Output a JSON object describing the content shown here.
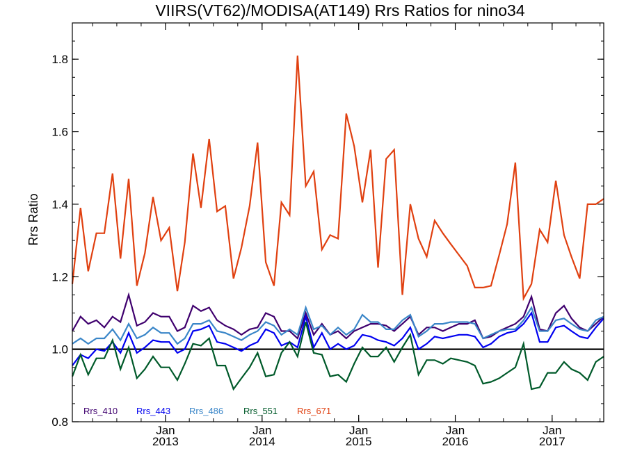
{
  "chart_data": {
    "type": "line",
    "title": "VIIRS(VT62)/MODISA(AT149)  Rrs Ratios for nino34",
    "xlabel": "",
    "ylabel": "Rrs Ratio",
    "xlim": [
      "2012-01-15",
      "2017-07-15"
    ],
    "ylim": [
      0.8,
      1.9
    ],
    "reference_line": 1.0,
    "legend_position": "bottom-left",
    "grid": false,
    "y_ticks": [
      "0.8",
      "1.0",
      "1.2",
      "1.4",
      "1.6",
      "1.8"
    ],
    "x_ticks": [
      {
        "date": "2013-01-01",
        "month": "Jan",
        "year": "2013"
      },
      {
        "date": "2014-01-01",
        "month": "Jan",
        "year": "2014"
      },
      {
        "date": "2015-01-01",
        "month": "Jan",
        "year": "2015"
      },
      {
        "date": "2016-01-01",
        "month": "Jan",
        "year": "2016"
      },
      {
        "date": "2017-01-01",
        "month": "Jan",
        "year": "2017"
      }
    ],
    "x": [
      "2012-01-15",
      "2012-02-15",
      "2012-03-15",
      "2012-04-15",
      "2012-05-15",
      "2012-06-15",
      "2012-07-15",
      "2012-08-15",
      "2012-09-15",
      "2012-10-15",
      "2012-11-15",
      "2012-12-15",
      "2013-01-15",
      "2013-02-15",
      "2013-03-15",
      "2013-04-15",
      "2013-05-15",
      "2013-06-15",
      "2013-07-15",
      "2013-08-15",
      "2013-09-15",
      "2013-10-15",
      "2013-11-15",
      "2013-12-15",
      "2014-01-15",
      "2014-02-15",
      "2014-03-15",
      "2014-04-15",
      "2014-05-15",
      "2014-06-15",
      "2014-07-15",
      "2014-08-15",
      "2014-09-15",
      "2014-10-15",
      "2014-11-15",
      "2014-12-15",
      "2015-01-15",
      "2015-02-15",
      "2015-03-15",
      "2015-04-15",
      "2015-05-15",
      "2015-06-15",
      "2015-07-15",
      "2015-08-15",
      "2015-09-15",
      "2015-10-15",
      "2015-11-15",
      "2015-12-15",
      "2016-01-15",
      "2016-02-15",
      "2016-03-15",
      "2016-04-15",
      "2016-05-15",
      "2016-06-15",
      "2016-07-15",
      "2016-08-15",
      "2016-09-15",
      "2016-10-15",
      "2016-11-15",
      "2016-12-15",
      "2017-01-15",
      "2017-02-15",
      "2017-03-15",
      "2017-04-15",
      "2017-05-15",
      "2017-06-15",
      "2017-07-15"
    ],
    "series": [
      {
        "name": "Rrs_410",
        "color": "#3f006e",
        "values": [
          1.05,
          1.09,
          1.07,
          1.08,
          1.06,
          1.09,
          1.075,
          1.15,
          1.065,
          1.075,
          1.1,
          1.09,
          1.09,
          1.05,
          1.06,
          1.12,
          1.105,
          1.115,
          1.08,
          1.065,
          1.055,
          1.04,
          1.055,
          1.06,
          1.1,
          1.09,
          1.05,
          1.05,
          1.03,
          1.1,
          1.04,
          1.07,
          1.04,
          1.05,
          1.03,
          1.05,
          1.06,
          1.07,
          1.07,
          1.065,
          1.05,
          1.07,
          1.09,
          1.04,
          1.06,
          1.06,
          1.05,
          1.06,
          1.07,
          1.07,
          1.08,
          1.03,
          1.035,
          1.05,
          1.06,
          1.07,
          1.09,
          1.145,
          1.055,
          1.05,
          1.1,
          1.12,
          1.085,
          1.06,
          1.05,
          1.07,
          1.09
        ]
      },
      {
        "name": "Rrs_443",
        "color": "#0000f0",
        "values": [
          0.955,
          0.985,
          0.975,
          1.0,
          0.995,
          1.02,
          0.99,
          1.045,
          0.99,
          1.005,
          1.025,
          1.02,
          1.02,
          0.99,
          1.0,
          1.05,
          1.055,
          1.065,
          1.02,
          1.015,
          1.005,
          0.995,
          1.01,
          1.02,
          1.055,
          1.045,
          1.01,
          1.02,
          1.005,
          1.09,
          1.005,
          1.045,
          1.0,
          1.015,
          1.0,
          1.01,
          1.04,
          1.035,
          1.025,
          1.02,
          1.01,
          1.03,
          1.06,
          1.0,
          1.015,
          1.035,
          1.03,
          1.035,
          1.04,
          1.04,
          1.035,
          1.005,
          1.015,
          1.035,
          1.045,
          1.05,
          1.07,
          1.1,
          1.02,
          1.02,
          1.06,
          1.065,
          1.05,
          1.035,
          1.03,
          1.06,
          1.085
        ]
      },
      {
        "name": "Rrs_486",
        "color": "#3a86c8",
        "values": [
          1.015,
          1.03,
          1.015,
          1.03,
          1.03,
          1.055,
          1.025,
          1.07,
          1.03,
          1.04,
          1.06,
          1.045,
          1.045,
          1.015,
          1.03,
          1.07,
          1.07,
          1.08,
          1.05,
          1.045,
          1.035,
          1.025,
          1.04,
          1.05,
          1.075,
          1.065,
          1.04,
          1.055,
          1.04,
          1.115,
          1.055,
          1.065,
          1.04,
          1.06,
          1.04,
          1.055,
          1.095,
          1.075,
          1.075,
          1.055,
          1.055,
          1.08,
          1.095,
          1.035,
          1.05,
          1.07,
          1.07,
          1.075,
          1.075,
          1.075,
          1.07,
          1.03,
          1.04,
          1.05,
          1.055,
          1.055,
          1.08,
          1.115,
          1.05,
          1.05,
          1.08,
          1.085,
          1.07,
          1.055,
          1.05,
          1.08,
          1.09
        ]
      },
      {
        "name": "Rrs_551",
        "color": "#005a2a",
        "values": [
          0.925,
          0.985,
          0.93,
          0.975,
          0.975,
          1.025,
          0.945,
          1.005,
          0.92,
          0.945,
          0.98,
          0.95,
          0.95,
          0.915,
          0.96,
          1.015,
          1.01,
          1.03,
          0.955,
          0.955,
          0.89,
          0.92,
          0.95,
          0.99,
          0.925,
          0.93,
          0.99,
          1.02,
          0.98,
          1.075,
          0.99,
          0.985,
          0.925,
          0.93,
          0.91,
          0.96,
          1.005,
          0.98,
          0.98,
          1.005,
          0.965,
          1.005,
          1.04,
          0.93,
          0.97,
          0.97,
          0.96,
          0.975,
          0.97,
          0.965,
          0.955,
          0.905,
          0.91,
          0.92,
          0.935,
          0.95,
          1.015,
          0.89,
          0.895,
          0.935,
          0.935,
          0.965,
          0.945,
          0.935,
          0.915,
          0.965,
          0.98
        ]
      },
      {
        "name": "Rrs_671",
        "color": "#e04010",
        "values": [
          1.18,
          1.39,
          1.215,
          1.32,
          1.32,
          1.485,
          1.25,
          1.47,
          1.175,
          1.265,
          1.42,
          1.3,
          1.335,
          1.16,
          1.295,
          1.54,
          1.39,
          1.58,
          1.38,
          1.395,
          1.195,
          1.28,
          1.395,
          1.57,
          1.24,
          1.175,
          1.405,
          1.37,
          1.81,
          1.45,
          1.49,
          1.275,
          1.315,
          1.305,
          1.65,
          1.56,
          1.405,
          1.55,
          1.225,
          1.525,
          1.55,
          1.15,
          1.4,
          1.305,
          1.255,
          1.355,
          1.32,
          1.29,
          1.26,
          1.23,
          1.17,
          1.17,
          1.175,
          1.26,
          1.345,
          1.515,
          1.14,
          1.18,
          1.33,
          1.295,
          1.465,
          1.315,
          1.255,
          1.195,
          1.4,
          1.4,
          1.415
        ]
      }
    ]
  }
}
